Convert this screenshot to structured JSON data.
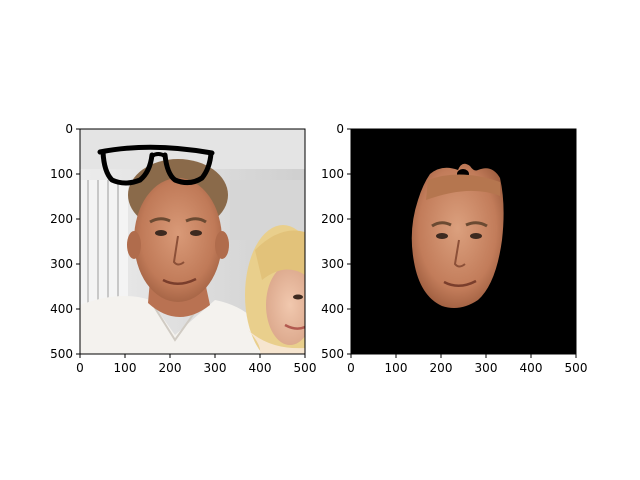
{
  "figure": {
    "background": "#ffffff"
  },
  "chart_data": [
    {
      "type": "image",
      "title": "",
      "xlabel": "",
      "ylabel": "",
      "xlim": [
        0,
        500
      ],
      "ylim": [
        500,
        0
      ],
      "xticks": [
        0,
        100,
        200,
        300,
        400,
        500
      ],
      "yticks": [
        0,
        100,
        200,
        300,
        400,
        500
      ],
      "xtick_labels": [
        "0",
        "100",
        "200",
        "300",
        "400",
        "500"
      ],
      "ytick_labels": [
        "0",
        "100",
        "200",
        "300",
        "400",
        "500"
      ],
      "grid": false,
      "content": "photo of a man and a woman, with black eyeglasses drawn on the man's forehead"
    },
    {
      "type": "image",
      "title": "",
      "xlabel": "",
      "ylabel": "",
      "xlim": [
        0,
        500
      ],
      "ylim": [
        500,
        0
      ],
      "xticks": [
        0,
        100,
        200,
        300,
        400,
        500
      ],
      "yticks": [
        0,
        100,
        200,
        300,
        400,
        500
      ],
      "xtick_labels": [
        "0",
        "100",
        "200",
        "300",
        "400",
        "500"
      ],
      "ytick_labels": [
        "0",
        "100",
        "200",
        "300",
        "400",
        "500"
      ],
      "grid": false,
      "content": "segmented face of the man on a black background"
    }
  ]
}
